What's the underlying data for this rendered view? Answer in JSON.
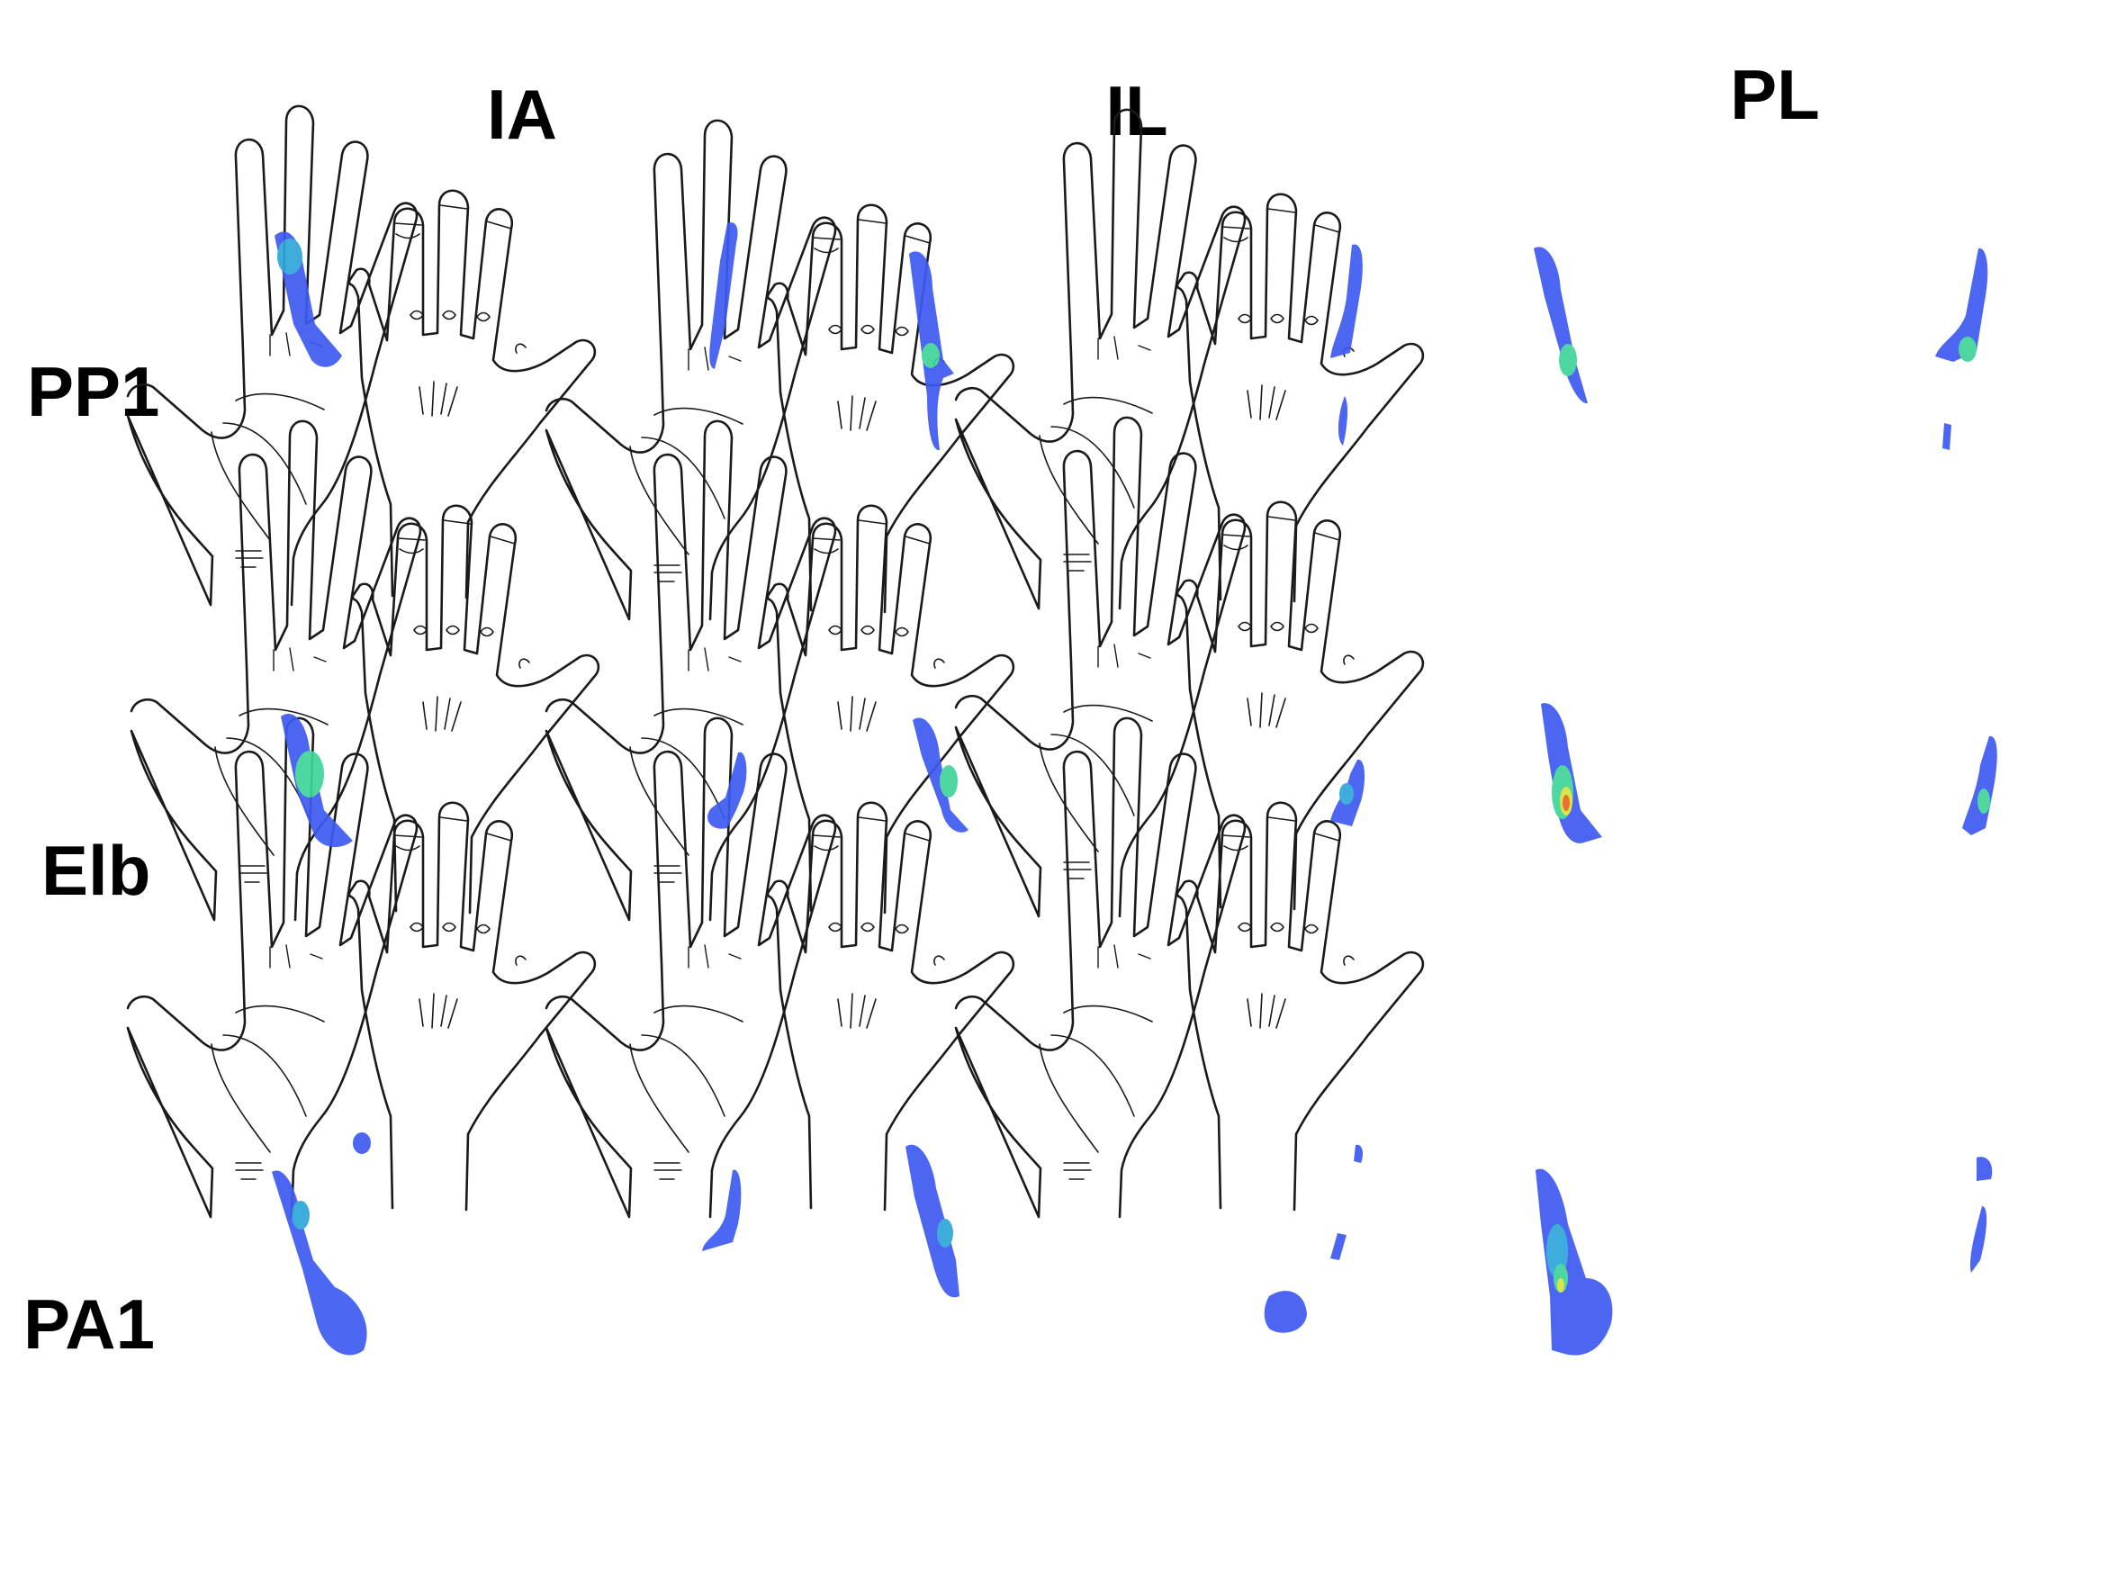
{
  "figure": {
    "columns": [
      {
        "label": "IA"
      },
      {
        "label": "IL"
      },
      {
        "label": "PL"
      }
    ],
    "rows": [
      {
        "label": "PP1"
      },
      {
        "label": "Elb"
      },
      {
        "label": "PA1"
      }
    ],
    "panel_views": [
      "palm",
      "dorsum"
    ],
    "colors": {
      "outline": "#1a1a1a",
      "heat_low": "#3d5af0",
      "heat_mid_low": "#2fa7d8",
      "heat_mid": "#3fd49a",
      "heat_high": "#d8e23a",
      "heat_peak": "#e8641f"
    },
    "shaded_regions": [
      {
        "row": "PP1",
        "col": "IA",
        "view": "palm",
        "regions": [
          "index finger"
        ]
      },
      {
        "row": "PP1",
        "col": "IA",
        "view": "dorsum",
        "regions": [
          "index finger"
        ]
      },
      {
        "row": "PP1",
        "col": "IL",
        "view": "palm",
        "regions": [
          "index finger",
          "index base"
        ]
      },
      {
        "row": "PP1",
        "col": "IL",
        "view": "dorsum",
        "regions": [
          "index finger",
          "dorsal hand"
        ]
      },
      {
        "row": "PP1",
        "col": "PL",
        "view": "palm",
        "regions": [
          "index finger"
        ]
      },
      {
        "row": "PP1",
        "col": "PL",
        "view": "dorsum",
        "regions": [
          "index finger",
          "dorsal hand"
        ]
      },
      {
        "row": "Elb",
        "col": "IA",
        "view": "palm",
        "regions": [
          "index finger"
        ]
      },
      {
        "row": "Elb",
        "col": "IA",
        "view": "dorsum",
        "regions": [
          "index finger"
        ]
      },
      {
        "row": "Elb",
        "col": "IL",
        "view": "palm",
        "regions": [
          "index finger"
        ]
      },
      {
        "row": "Elb",
        "col": "IL",
        "view": "dorsum",
        "regions": [
          "index finger"
        ]
      },
      {
        "row": "Elb",
        "col": "PL",
        "view": "palm",
        "regions": [
          "index finger"
        ]
      },
      {
        "row": "Elb",
        "col": "PL",
        "view": "dorsum",
        "regions": [
          "index finger"
        ]
      },
      {
        "row": "PA1",
        "col": "IA",
        "view": "palm",
        "regions": [
          "index finger",
          "middle tip",
          "palm center"
        ]
      },
      {
        "row": "PA1",
        "col": "IA",
        "view": "dorsum",
        "regions": [
          "index finger"
        ]
      },
      {
        "row": "PA1",
        "col": "IL",
        "view": "palm",
        "regions": [
          "index finger"
        ]
      },
      {
        "row": "PA1",
        "col": "IL",
        "view": "dorsum",
        "regions": [
          "index finger",
          "dorsal hand"
        ]
      },
      {
        "row": "PA1",
        "col": "PL",
        "view": "palm",
        "regions": [
          "index finger",
          "palm center"
        ]
      },
      {
        "row": "PA1",
        "col": "PL",
        "view": "dorsum",
        "regions": [
          "index finger"
        ]
      }
    ]
  }
}
